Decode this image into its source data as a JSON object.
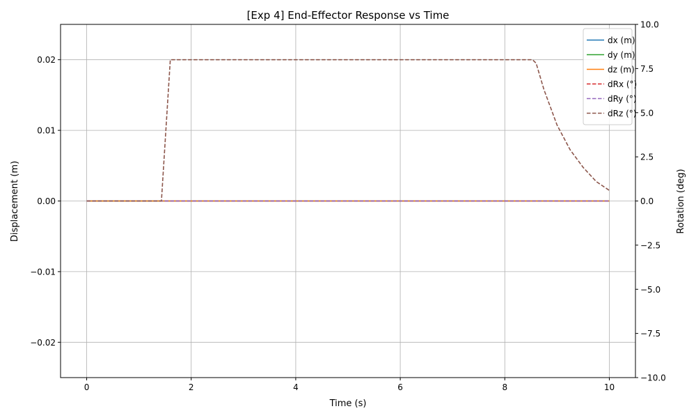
{
  "chart_data": {
    "type": "line",
    "title": "[Exp 4] End-Effector Response vs Time",
    "xlabel": "Time (s)",
    "ylabel": "Displacement (m)",
    "y2label": "Rotation (deg)",
    "xlim": [
      -0.5,
      10.5
    ],
    "ylim": [
      -0.025,
      0.025
    ],
    "y2lim": [
      -10,
      10
    ],
    "grid": true,
    "legend_position": "top-right",
    "x_ticks": [
      0,
      2,
      4,
      6,
      8,
      10
    ],
    "x_tick_labels": [
      "0",
      "2",
      "4",
      "6",
      "8",
      "10"
    ],
    "y_ticks": [
      -0.02,
      -0.01,
      0.0,
      0.01,
      0.02
    ],
    "y_tick_labels": [
      "−0.02",
      "−0.01",
      "0.00",
      "0.01",
      "0.02"
    ],
    "y2_ticks": [
      -10,
      -7.5,
      -5,
      -2.5,
      0,
      2.5,
      5,
      7.5,
      10
    ],
    "y2_tick_labels": [
      "−10.0",
      "−7.5",
      "−5.0",
      "−2.5",
      "0.0",
      "2.5",
      "5.0",
      "7.5",
      "10.0"
    ],
    "series": [
      {
        "name": "dx (m)",
        "axis": "left",
        "style": "solid",
        "color": "#1f77b4",
        "x": [
          0,
          10
        ],
        "values": [
          0,
          0
        ]
      },
      {
        "name": "dy (m)",
        "axis": "left",
        "style": "solid",
        "color": "#2ca02c",
        "x": [
          0,
          10
        ],
        "values": [
          0,
          0
        ]
      },
      {
        "name": "dz (m)",
        "axis": "left",
        "style": "solid",
        "color": "#ff7f0e",
        "x": [
          0,
          10
        ],
        "values": [
          0,
          0
        ]
      },
      {
        "name": "dRx (°)",
        "axis": "right",
        "style": "dashed",
        "color": "#d62728",
        "x": [
          0,
          10
        ],
        "values": [
          0,
          0
        ]
      },
      {
        "name": "dRy (°)",
        "axis": "right",
        "style": "dashed",
        "color": "#9467bd",
        "x": [
          0,
          10
        ],
        "values": [
          0,
          0
        ]
      },
      {
        "name": "dRz (°)",
        "axis": "right",
        "style": "dashed",
        "color": "#8c564b",
        "x": [
          0,
          1.43,
          1.6,
          8.53,
          8.6,
          8.75,
          9.0,
          9.25,
          9.5,
          9.75,
          10.0
        ],
        "values": [
          0,
          0,
          8.0,
          8.0,
          7.8,
          6.3,
          4.3,
          2.9,
          1.9,
          1.1,
          0.6
        ]
      }
    ]
  }
}
